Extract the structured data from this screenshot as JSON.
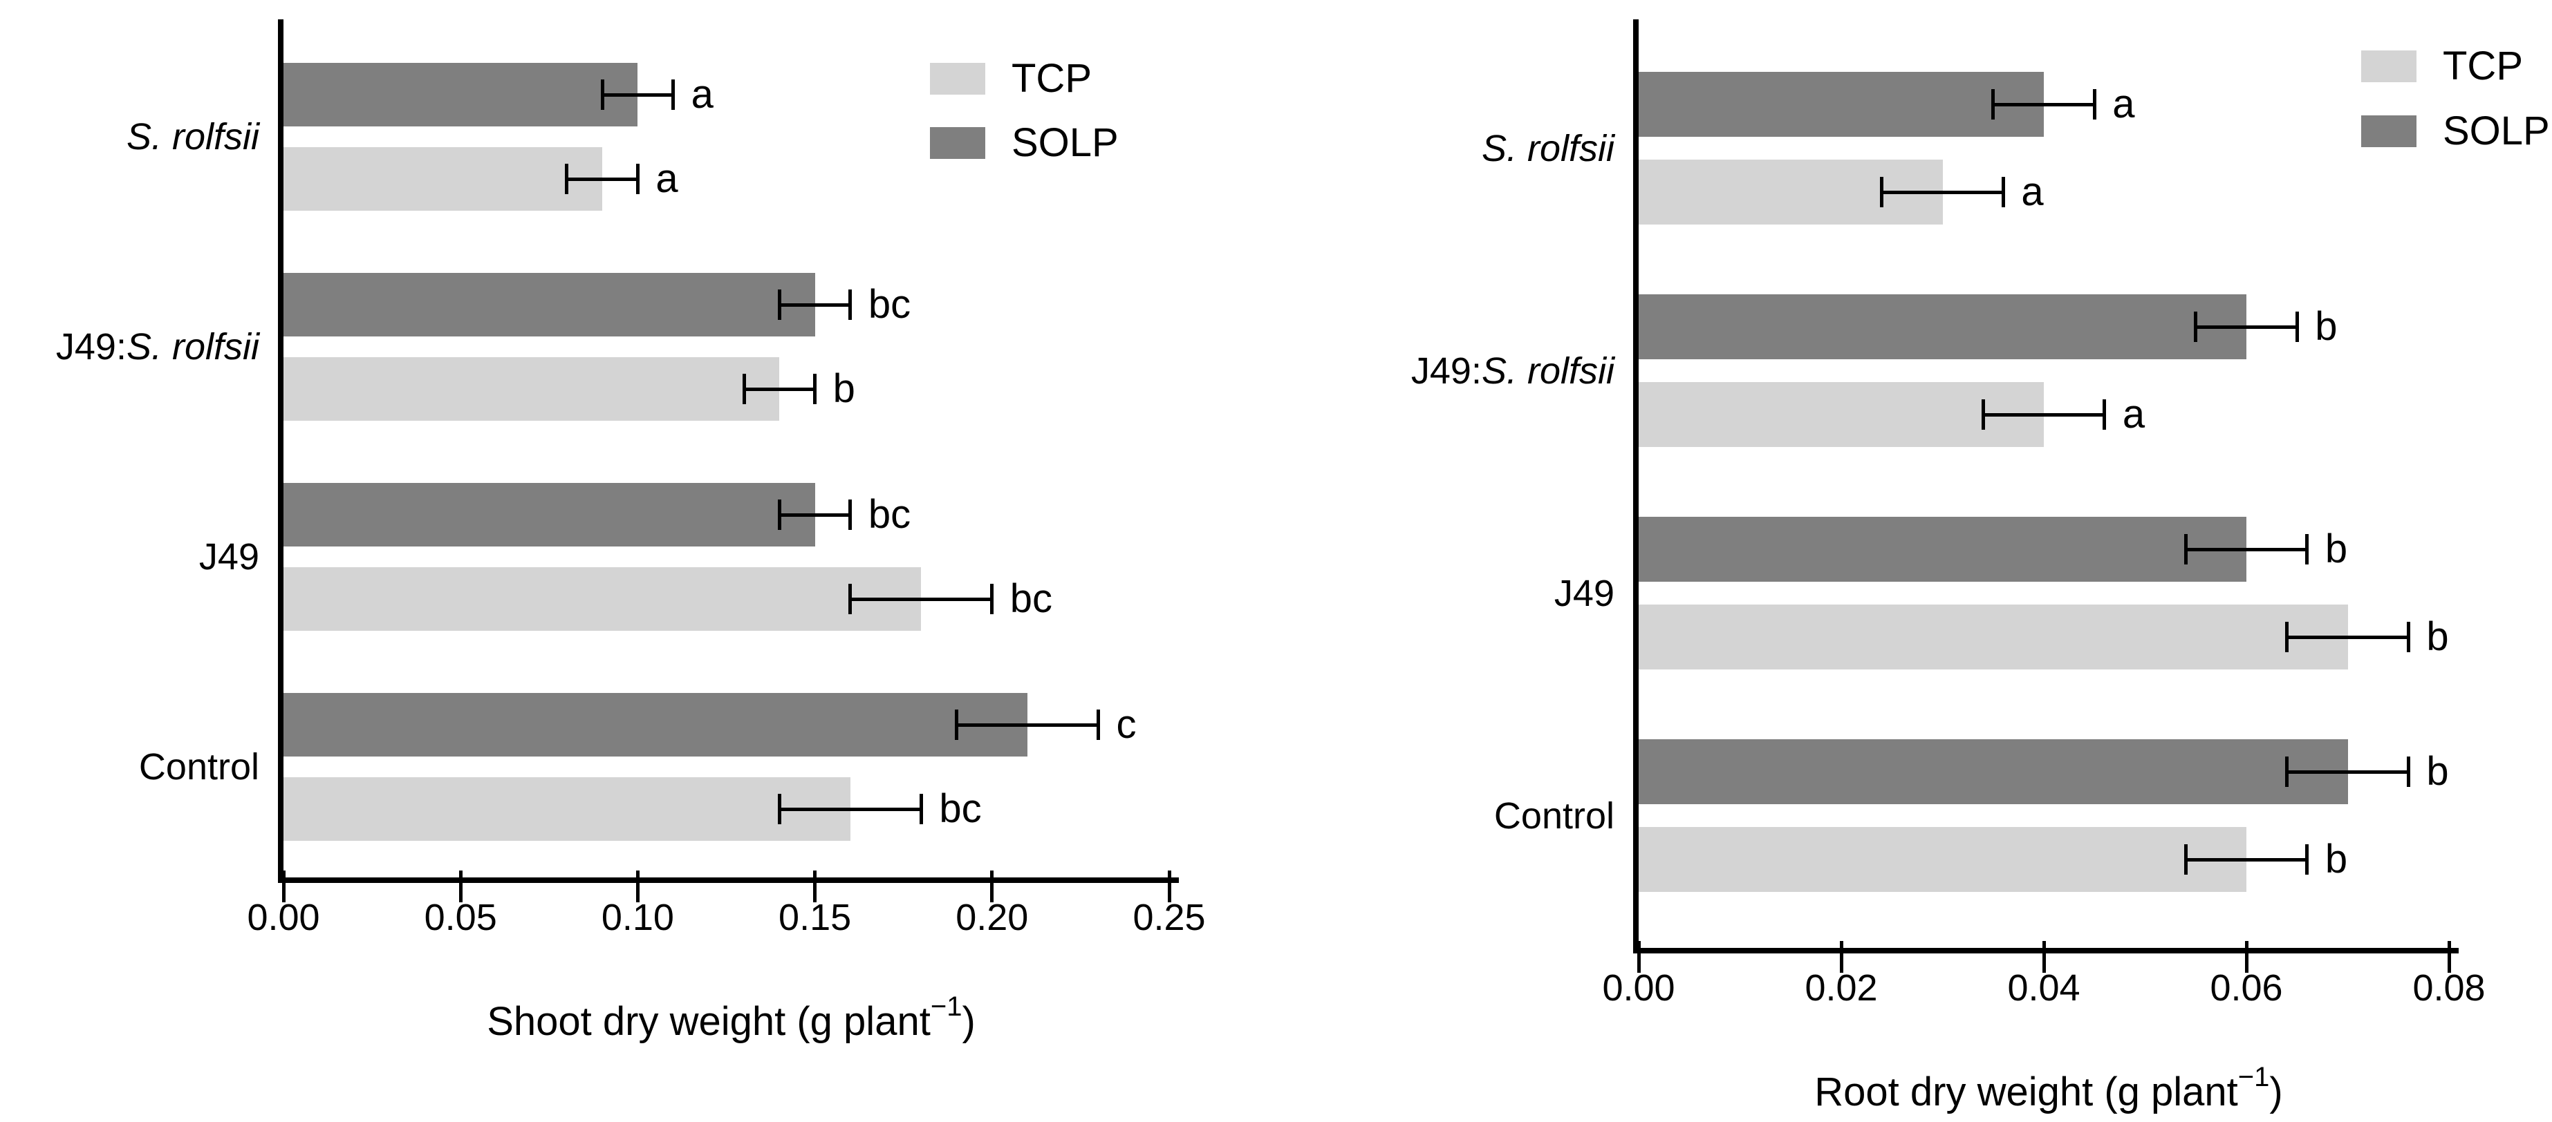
{
  "figure": {
    "description": "Two horizontal grouped bar charts comparing shoot and root dry weight per plant under TCP and SOLP treatments across four inoculation groups, with SE error bars and significance letters",
    "background": "#ffffff",
    "text_color": "#000000"
  },
  "chart_data": [
    {
      "type": "bar",
      "orientation": "horizontal",
      "title": "",
      "xlabel": {
        "pre": "Shoot dry weight (g plant",
        "sup": "−1",
        "post": ")"
      },
      "ylabel": "",
      "xlim": [
        0,
        0.25
      ],
      "xticks": [
        "0.00",
        "0.05",
        "0.10",
        "0.15",
        "0.20",
        "0.25"
      ],
      "grid": false,
      "legend_position": "top-right-inside",
      "categories": [
        {
          "parts": [
            {
              "t": "S. rolfsii",
              "i": true
            }
          ]
        },
        {
          "parts": [
            {
              "t": "J49:",
              "i": false
            },
            {
              "t": "S. rolfsii",
              "i": true
            }
          ]
        },
        {
          "parts": [
            {
              "t": "J49",
              "i": false
            }
          ]
        },
        {
          "parts": [
            {
              "t": "Control",
              "i": false
            }
          ]
        }
      ],
      "series": [
        {
          "name": "SOLP",
          "color": "#7f7f7f",
          "values": [
            0.1,
            0.15,
            0.15,
            0.21
          ],
          "errors": [
            0.01,
            0.01,
            0.01,
            0.02
          ],
          "sig": [
            "a",
            "bc",
            "bc",
            "c"
          ]
        },
        {
          "name": "TCP",
          "color": "#d4d4d4",
          "values": [
            0.09,
            0.14,
            0.18,
            0.16
          ],
          "errors": [
            0.01,
            0.01,
            0.02,
            0.02
          ],
          "sig": [
            "a",
            "b",
            "bc",
            "bc"
          ]
        }
      ],
      "legend": [
        {
          "label": "TCP",
          "color": "#d4d4d4"
        },
        {
          "label": "SOLP",
          "color": "#7f7f7f"
        }
      ]
    },
    {
      "type": "bar",
      "orientation": "horizontal",
      "title": "",
      "xlabel": {
        "pre": "Root dry weight (g plant",
        "sup": "−1",
        "post": ")"
      },
      "ylabel": "",
      "xlim": [
        0,
        0.08
      ],
      "xticks": [
        "0.00",
        "0.02",
        "0.04",
        "0.06",
        "0.08"
      ],
      "grid": false,
      "legend_position": "top-right-inside",
      "categories": [
        {
          "parts": [
            {
              "t": "S. rolfsii",
              "i": true
            }
          ]
        },
        {
          "parts": [
            {
              "t": "J49:",
              "i": false
            },
            {
              "t": "S. rolfsii",
              "i": true
            }
          ]
        },
        {
          "parts": [
            {
              "t": "J49",
              "i": false
            }
          ]
        },
        {
          "parts": [
            {
              "t": "Control",
              "i": false
            }
          ]
        }
      ],
      "series": [
        {
          "name": "SOLP",
          "color": "#7f7f7f",
          "values": [
            0.04,
            0.06,
            0.06,
            0.07
          ],
          "errors": [
            0.005,
            0.005,
            0.006,
            0.006
          ],
          "sig": [
            "a",
            "b",
            "b",
            "b"
          ]
        },
        {
          "name": "TCP",
          "color": "#d4d4d4",
          "values": [
            0.03,
            0.04,
            0.07,
            0.06
          ],
          "errors": [
            0.006,
            0.006,
            0.006,
            0.006
          ],
          "sig": [
            "a",
            "a",
            "b",
            "b"
          ]
        }
      ],
      "legend": [
        {
          "label": "TCP",
          "color": "#d4d4d4"
        },
        {
          "label": "SOLP",
          "color": "#7f7f7f"
        }
      ]
    }
  ]
}
